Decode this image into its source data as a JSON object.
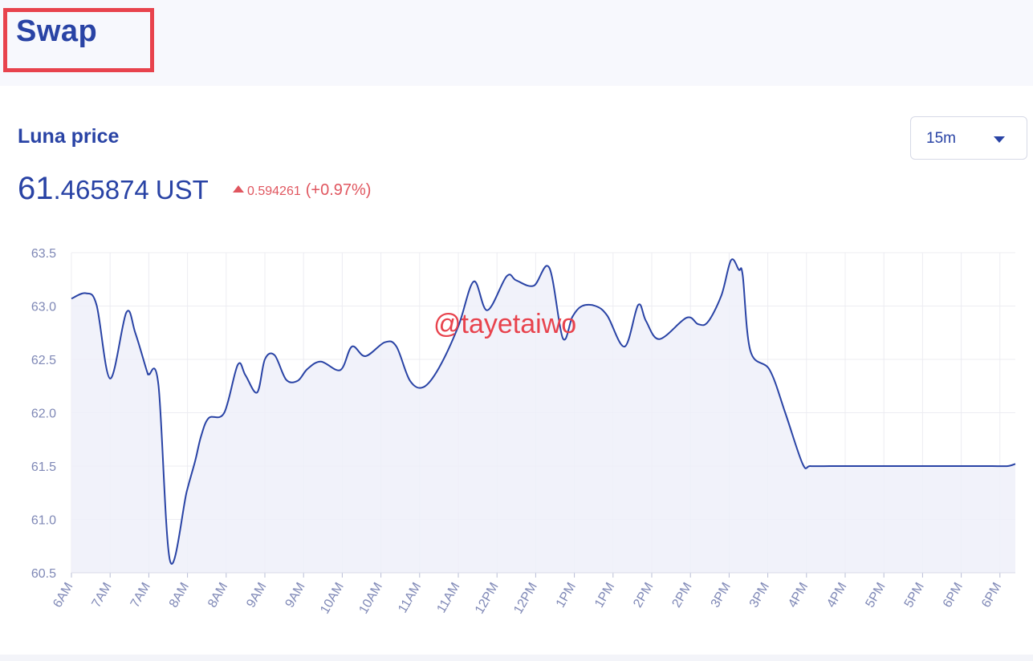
{
  "header": {
    "title": "Swap"
  },
  "card": {
    "title": "Luna price",
    "price_int": "61",
    "price_dec": ".465874",
    "unit": "UST",
    "change_abs": "0.594261",
    "change_pct": "(+0.97%)",
    "interval": "15m"
  },
  "watermark": "@tayetaiwo",
  "colors": {
    "primary": "#2943a5",
    "positive": "#e0565f",
    "fill": "#eff0f9",
    "grid": "#ececf2"
  },
  "chart_data": {
    "type": "area",
    "title": "",
    "xlabel": "",
    "ylabel": "",
    "ylim": [
      60.5,
      63.5
    ],
    "yticks": [
      "63.5",
      "63.0",
      "62.5",
      "62.0",
      "61.5",
      "61.0",
      "60.5"
    ],
    "xticks": [
      "6AM",
      "7AM",
      "7AM",
      "8AM",
      "8AM",
      "9AM",
      "9AM",
      "10AM",
      "10AM",
      "11AM",
      "11AM",
      "12PM",
      "12PM",
      "1PM",
      "1PM",
      "2PM",
      "2PM",
      "3PM",
      "3PM",
      "4PM",
      "4PM",
      "5PM",
      "5PM",
      "6PM",
      "6PM"
    ],
    "grid": true,
    "series": [
      {
        "x": [
          0,
          0.37,
          0.65,
          1.0,
          1.42,
          1.65,
          1.95,
          2.0,
          2.25,
          2.55,
          2.98,
          3.2,
          3.35,
          3.55,
          3.95,
          4.3,
          4.5,
          4.8,
          5.0,
          5.25,
          5.55,
          5.85,
          6.1,
          6.45,
          6.95,
          7.25,
          7.6,
          8.1,
          8.4,
          8.75,
          9.1,
          9.5,
          10.0,
          10.4,
          10.75,
          11.25,
          11.5,
          11.95,
          12.35,
          12.7,
          12.95,
          13.2,
          13.55,
          13.85,
          14.3,
          14.65,
          14.85,
          15.2,
          15.9,
          16.2,
          16.45,
          16.8,
          17.05,
          17.25,
          17.35,
          17.55,
          18.05,
          18.45,
          18.9,
          19.1,
          19.6,
          19.9,
          20.25,
          20.65,
          21.05,
          21.4,
          21.7,
          22.1,
          22.45,
          23.0,
          23.25,
          23.45,
          23.8,
          24.2,
          24.5,
          24.75
        ],
        "values": [
          63.07,
          63.12,
          63.01,
          62.32,
          62.94,
          62.75,
          62.39,
          62.36,
          62.26,
          60.61,
          61.26,
          61.55,
          61.78,
          61.95,
          62.0,
          62.45,
          62.35,
          62.19,
          62.5,
          62.54,
          62.31,
          62.3,
          62.41,
          62.48,
          62.4,
          62.62,
          62.53,
          62.66,
          62.62,
          62.3,
          62.24,
          62.42,
          62.81,
          63.23,
          62.96,
          63.28,
          63.24,
          63.19,
          63.36,
          62.7,
          62.9,
          63.0,
          63.0,
          62.91,
          62.62,
          63.01,
          62.86,
          62.69,
          62.89,
          62.83,
          62.85,
          63.1,
          63.43,
          63.34,
          63.29,
          62.58,
          62.4,
          62.0,
          61.52,
          61.5,
          61.5,
          61.5,
          61.5,
          61.5,
          61.5,
          61.5,
          61.5,
          61.5,
          61.5,
          61.5,
          61.5,
          61.5,
          61.5,
          61.5,
          61.5,
          61.5
        ]
      }
    ]
  }
}
